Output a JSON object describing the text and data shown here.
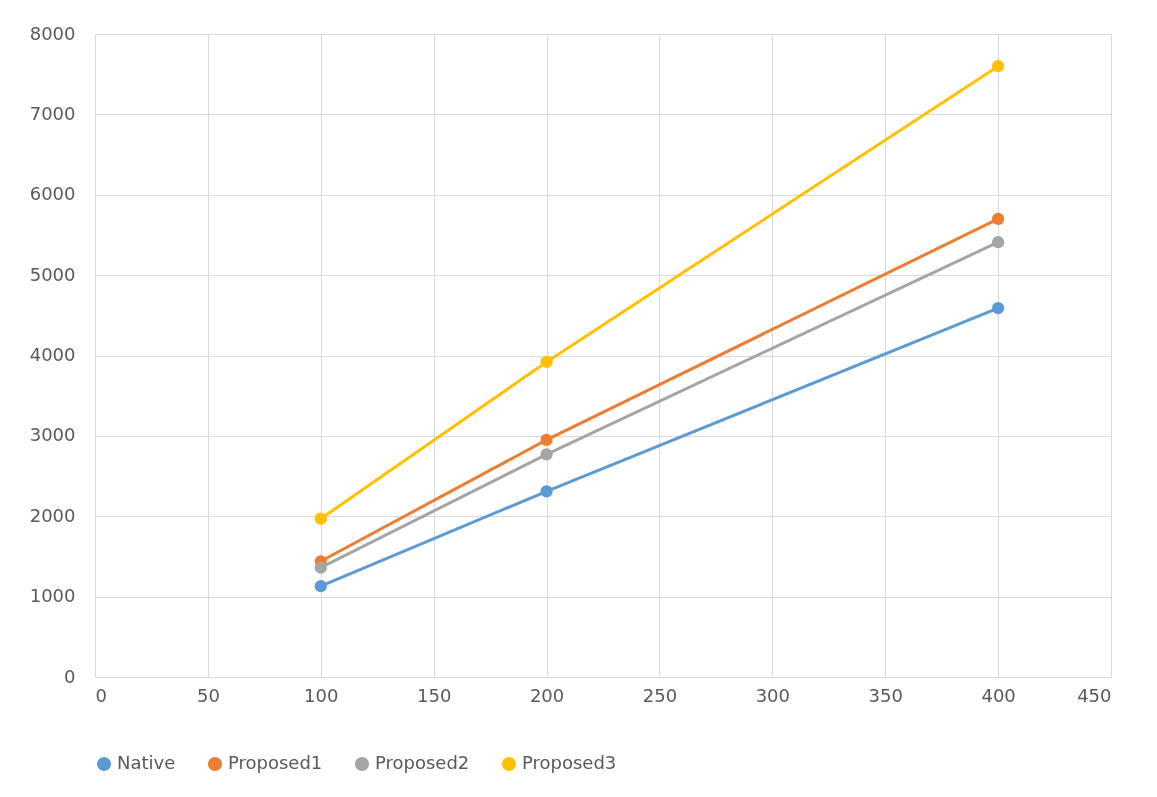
{
  "chart_data": {
    "type": "line",
    "xlim": [
      0,
      450
    ],
    "xticks": [
      0,
      50,
      100,
      150,
      200,
      250,
      300,
      350,
      400,
      450
    ],
    "ylim": [
      0,
      8000
    ],
    "yticks": [
      0,
      1000,
      2000,
      3000,
      4000,
      5000,
      6000,
      7000,
      8000
    ],
    "grid": true,
    "legend": "bottom",
    "marker": "circle",
    "line_style": "solid",
    "series": [
      {
        "name": "Native",
        "color": "#5b9bd5",
        "x": [
          100,
          200,
          400
        ],
        "values": [
          1130,
          2310,
          4590
        ]
      },
      {
        "name": "Proposed1",
        "color": "#ed7d31",
        "x": [
          100,
          200,
          400
        ],
        "values": [
          1440,
          2950,
          5700
        ]
      },
      {
        "name": "Proposed2",
        "color": "#a5a5a5",
        "x": [
          100,
          200,
          400
        ],
        "values": [
          1360,
          2770,
          5410
        ]
      },
      {
        "name": "Proposed3",
        "color": "#ffc000",
        "x": [
          100,
          200,
          400
        ],
        "values": [
          1970,
          3920,
          7600
        ]
      }
    ]
  }
}
